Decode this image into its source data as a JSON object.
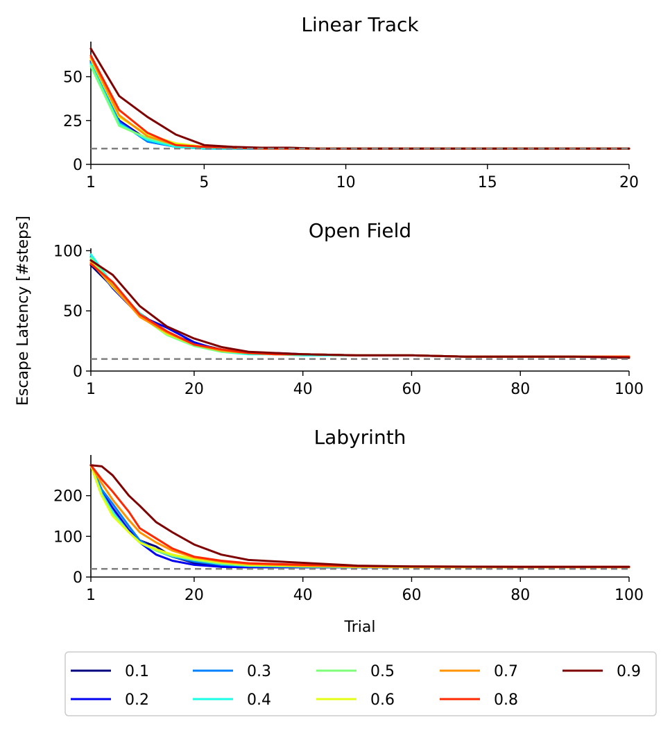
{
  "ylabel": "Escape Latency [#steps]",
  "xlabel": "Trial",
  "legend": {
    "entries": [
      {
        "name": "0.1",
        "color": "#00007f"
      },
      {
        "name": "0.2",
        "color": "#0000f1"
      },
      {
        "name": "0.3",
        "color": "#0080ff"
      },
      {
        "name": "0.4",
        "color": "#1affe4"
      },
      {
        "name": "0.5",
        "color": "#7dff7a"
      },
      {
        "name": "0.6",
        "color": "#e4ff13"
      },
      {
        "name": "0.7",
        "color": "#ff9300"
      },
      {
        "name": "0.8",
        "color": "#ff2800"
      },
      {
        "name": "0.9",
        "color": "#7f0000"
      }
    ],
    "placement": "bottom-center, 5 columns"
  },
  "chart_data": [
    {
      "type": "line",
      "title": "Linear Track",
      "xlabel": "",
      "ylabel": "Escape Latency [#steps]",
      "xlim": [
        1,
        20
      ],
      "ylim": [
        0,
        70
      ],
      "xticks": [
        "1",
        "5",
        "10",
        "15",
        "20"
      ],
      "yticks": [
        "0",
        "25",
        "50"
      ],
      "baseline": 9,
      "x": [
        1,
        2,
        3,
        4,
        5,
        6,
        7,
        8,
        9,
        10,
        11,
        12,
        13,
        14,
        15,
        16,
        17,
        18,
        19,
        20
      ],
      "series": [
        {
          "name": "0.1",
          "values": [
            58,
            25,
            14,
            10,
            9,
            9,
            9,
            9,
            9,
            9,
            9,
            9,
            9,
            9,
            9,
            9,
            9,
            9,
            9,
            9
          ]
        },
        {
          "name": "0.2",
          "values": [
            59,
            25,
            13,
            10,
            9,
            9,
            9,
            9,
            9,
            9,
            9,
            9,
            9,
            9,
            9,
            9,
            9,
            9,
            9,
            9
          ]
        },
        {
          "name": "0.3",
          "values": [
            58,
            24,
            13,
            10,
            9,
            9,
            9,
            9,
            9,
            9,
            9,
            9,
            9,
            9,
            9,
            9,
            9,
            9,
            9,
            9
          ]
        },
        {
          "name": "0.4",
          "values": [
            57,
            23,
            14,
            10,
            9,
            9,
            9,
            9,
            9,
            9,
            9,
            9,
            9,
            9,
            9,
            9,
            9,
            9,
            9,
            9
          ]
        },
        {
          "name": "0.5",
          "values": [
            56,
            22,
            15,
            11,
            10,
            9.5,
            9.5,
            9.5,
            9,
            9,
            9,
            9,
            9,
            9,
            9,
            9,
            9,
            9,
            9,
            9
          ]
        },
        {
          "name": "0.6",
          "values": [
            60,
            27,
            17,
            12,
            10,
            9.5,
            9,
            9,
            9,
            9,
            9,
            9,
            9,
            9,
            9,
            9,
            9,
            9,
            9,
            9
          ]
        },
        {
          "name": "0.7",
          "values": [
            61,
            28,
            16,
            11,
            10,
            9.5,
            9,
            9,
            9,
            9,
            9,
            9,
            9,
            9,
            9,
            9,
            9,
            9,
            9,
            9
          ]
        },
        {
          "name": "0.8",
          "values": [
            62,
            31,
            18,
            11,
            10,
            9.5,
            9,
            9,
            9,
            9,
            9,
            9,
            9,
            9,
            9,
            9,
            9,
            9,
            9,
            9
          ]
        },
        {
          "name": "0.9",
          "values": [
            66,
            39,
            27,
            17,
            11,
            10,
            9.5,
            9.5,
            9,
            9,
            9,
            9,
            9,
            9,
            9,
            9,
            9,
            9,
            9,
            9
          ]
        }
      ]
    },
    {
      "type": "line",
      "title": "Open Field",
      "xlabel": "",
      "ylabel": "Escape Latency [#steps]",
      "xlim": [
        1,
        100
      ],
      "ylim": [
        0,
        102
      ],
      "xticks": [
        "1",
        "20",
        "40",
        "60",
        "80",
        "100"
      ],
      "yticks": [
        "0",
        "50",
        "100"
      ],
      "baseline": 10,
      "x": [
        1,
        5,
        10,
        15,
        20,
        25,
        30,
        35,
        40,
        50,
        60,
        70,
        80,
        90,
        100
      ],
      "series": [
        {
          "name": "0.1",
          "values": [
            88,
            70,
            48,
            32,
            23,
            18,
            15,
            14,
            14,
            13,
            13,
            12,
            12,
            12,
            12
          ]
        },
        {
          "name": "0.2",
          "values": [
            92,
            69,
            46,
            36,
            24,
            17,
            15,
            15,
            14,
            13,
            13,
            12,
            12,
            12,
            12
          ]
        },
        {
          "name": "0.3",
          "values": [
            95,
            70,
            47,
            31,
            22,
            17,
            15,
            14,
            14,
            13,
            13,
            12,
            12,
            12,
            12
          ]
        },
        {
          "name": "0.4",
          "values": [
            97,
            72,
            48,
            30,
            21,
            16,
            14,
            14,
            13,
            13,
            13,
            12,
            12,
            12,
            12
          ]
        },
        {
          "name": "0.5",
          "values": [
            94,
            71,
            46,
            30,
            21,
            16,
            15,
            14,
            14,
            13,
            13,
            12,
            12,
            12,
            12
          ]
        },
        {
          "name": "0.6",
          "values": [
            91,
            70,
            46,
            31,
            22,
            17,
            15,
            14,
            14,
            13,
            13,
            12,
            12,
            12,
            12
          ]
        },
        {
          "name": "0.7",
          "values": [
            90,
            71,
            45,
            32,
            22,
            17,
            15,
            14,
            14,
            13,
            13,
            12,
            12,
            12,
            12
          ]
        },
        {
          "name": "0.8",
          "values": [
            89,
            74,
            47,
            33,
            22,
            18,
            15,
            14,
            14,
            13,
            13,
            12,
            12,
            12,
            12
          ]
        },
        {
          "name": "0.9",
          "values": [
            92,
            80,
            54,
            37,
            27,
            20,
            16,
            15,
            14,
            13,
            13,
            12,
            12,
            12,
            11
          ]
        }
      ]
    },
    {
      "type": "line",
      "title": "Labyrinth",
      "xlabel": "Trial",
      "ylabel": "Escape Latency [#steps]",
      "xlim": [
        1,
        100
      ],
      "ylim": [
        0,
        300
      ],
      "xticks": [
        "1",
        "20",
        "40",
        "60",
        "80",
        "100"
      ],
      "yticks": [
        "0",
        "100",
        "200"
      ],
      "baseline": 20,
      "x": [
        1,
        3,
        5,
        8,
        10,
        13,
        16,
        20,
        25,
        30,
        40,
        50,
        60,
        80,
        100
      ],
      "series": [
        {
          "name": "0.1",
          "values": [
            275,
            200,
            160,
            115,
            90,
            75,
            50,
            35,
            25,
            24,
            24,
            24,
            24,
            24,
            24
          ]
        },
        {
          "name": "0.2",
          "values": [
            275,
            210,
            170,
            115,
            85,
            55,
            40,
            30,
            25,
            24,
            24,
            24,
            24,
            24,
            24
          ]
        },
        {
          "name": "0.3",
          "values": [
            275,
            215,
            180,
            125,
            90,
            65,
            50,
            38,
            30,
            27,
            25,
            24,
            24,
            24,
            24
          ]
        },
        {
          "name": "0.4",
          "values": [
            275,
            205,
            160,
            110,
            85,
            65,
            55,
            42,
            32,
            28,
            26,
            25,
            24,
            24,
            24
          ]
        },
        {
          "name": "0.5",
          "values": [
            275,
            200,
            155,
            110,
            85,
            65,
            52,
            42,
            33,
            28,
            26,
            25,
            24,
            24,
            24
          ]
        },
        {
          "name": "0.6",
          "values": [
            275,
            200,
            150,
            110,
            85,
            68,
            55,
            45,
            36,
            30,
            27,
            25,
            24,
            24,
            24
          ]
        },
        {
          "name": "0.7",
          "values": [
            275,
            230,
            190,
            140,
            110,
            85,
            65,
            48,
            38,
            32,
            28,
            26,
            25,
            24,
            24
          ]
        },
        {
          "name": "0.8",
          "values": [
            275,
            240,
            210,
            160,
            120,
            95,
            70,
            50,
            40,
            34,
            30,
            27,
            26,
            25,
            25
          ]
        },
        {
          "name": "0.9",
          "values": [
            275,
            272,
            250,
            200,
            175,
            135,
            110,
            80,
            55,
            42,
            35,
            28,
            26,
            25,
            25
          ]
        }
      ]
    }
  ]
}
